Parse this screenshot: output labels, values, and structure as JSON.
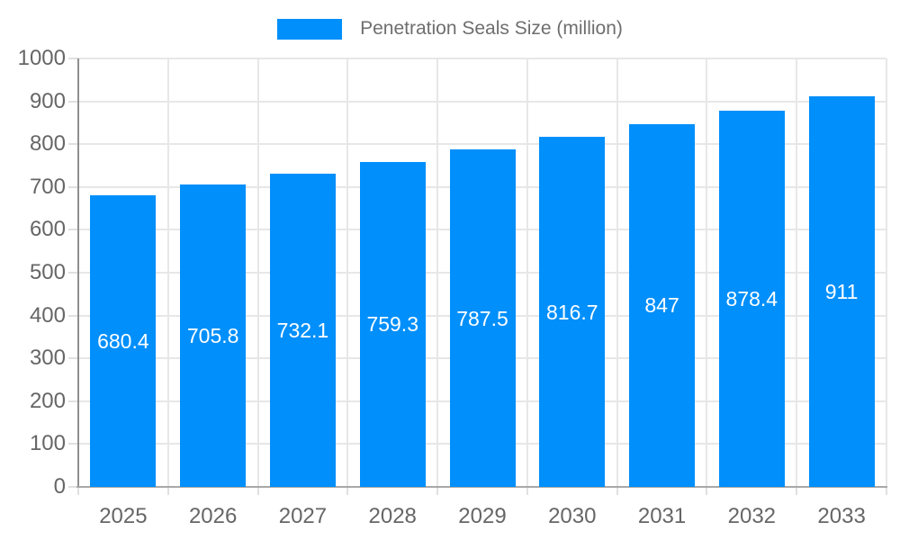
{
  "legend": {
    "label": "Penetration Seals Size (million)"
  },
  "colors": {
    "bar": "#008FFB",
    "grid": "#e7e7e7",
    "tick": "#e0e0e0",
    "xaxis_line": "#a8a8a8",
    "yaxis_line": "#8f8f8f",
    "axis_label_text": "#666666",
    "legend_text": "#6e6e6e",
    "data_label_text": "#ffffff",
    "background": "#ffffff"
  },
  "chart_data": {
    "type": "bar",
    "title": "Penetration Seals Size (million)",
    "categories": [
      "2025",
      "2026",
      "2027",
      "2028",
      "2029",
      "2030",
      "2031",
      "2032",
      "2033"
    ],
    "values": [
      680.4,
      705.8,
      732.1,
      759.3,
      787.5,
      816.7,
      847,
      878.4,
      911
    ],
    "data_labels": [
      "680.4",
      "705.8",
      "732.1",
      "759.3",
      "787.5",
      "816.7",
      "847",
      "878.4",
      "911"
    ],
    "xlabel": "",
    "ylabel": "",
    "ylim": [
      0,
      1000
    ],
    "ytick_step": 100,
    "ytick_labels": [
      "0",
      "100",
      "200",
      "300",
      "400",
      "500",
      "600",
      "700",
      "800",
      "900",
      "1000"
    ],
    "grid": true,
    "legend_position": "top"
  }
}
